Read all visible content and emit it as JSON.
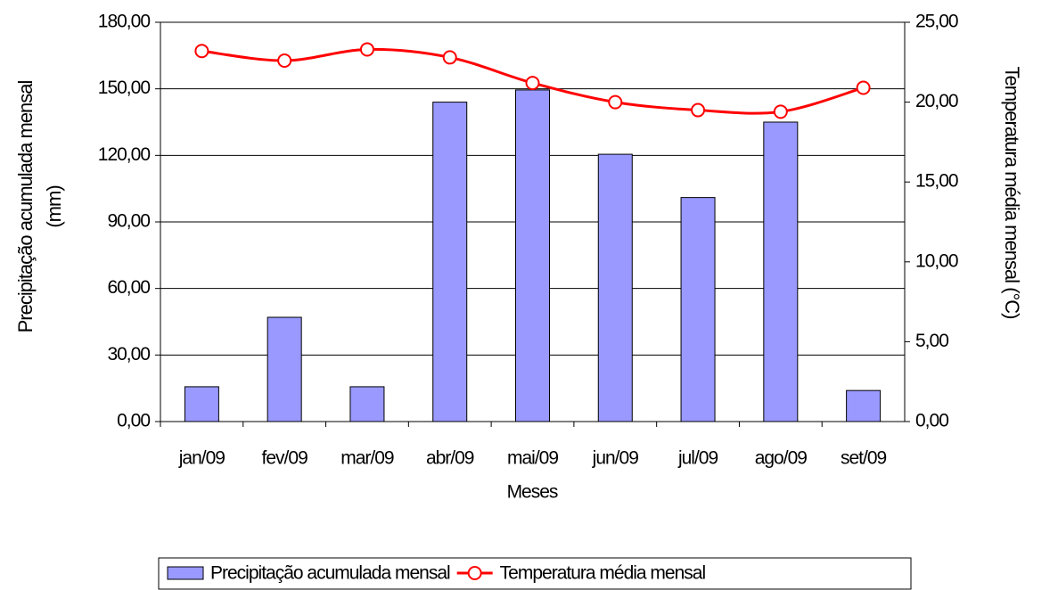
{
  "chart_data": {
    "type": "bar",
    "x_label": "Meses",
    "y_label": "Precipitação acumulada mensal (mm)",
    "y2_label": "Temperatura média mensal (°C)",
    "categories": [
      "jan/09",
      "fev/09",
      "mar/09",
      "abr/09",
      "mai/09",
      "jun/09",
      "jul/09",
      "ago/09",
      "set/09"
    ],
    "series": [
      {
        "name": "Precipitação acumulada mensal",
        "type": "bar",
        "color": "#9999ff",
        "values": [
          15.7,
          47,
          15.7,
          144,
          149.5,
          120.5,
          101,
          135,
          14
        ]
      },
      {
        "name": "Temperatura média mensal",
        "type": "line",
        "axis": "y2",
        "color": "#ff0000",
        "values": [
          23.2,
          22.6,
          23.3,
          22.8,
          21.2,
          20.0,
          19.5,
          19.4,
          20.9
        ]
      }
    ],
    "ylim": [
      0,
      180
    ],
    "yticks": [
      {
        "value": 0,
        "label": "0,00"
      },
      {
        "value": 30,
        "label": "30,00"
      },
      {
        "value": 60,
        "label": "60,00"
      },
      {
        "value": 90,
        "label": "90,00"
      },
      {
        "value": 120,
        "label": "120,00"
      },
      {
        "value": 150,
        "label": "150,00"
      },
      {
        "value": 180,
        "label": "180,00"
      }
    ],
    "y2lim": [
      0,
      25
    ],
    "y2ticks": [
      {
        "value": 0,
        "label": "0,00"
      },
      {
        "value": 5,
        "label": "5,00"
      },
      {
        "value": 10,
        "label": "10,00"
      },
      {
        "value": 15,
        "label": "15,00"
      },
      {
        "value": 20,
        "label": "20,00"
      },
      {
        "value": 25,
        "label": "25,00"
      }
    ],
    "grid": true,
    "legend": "bottom"
  }
}
